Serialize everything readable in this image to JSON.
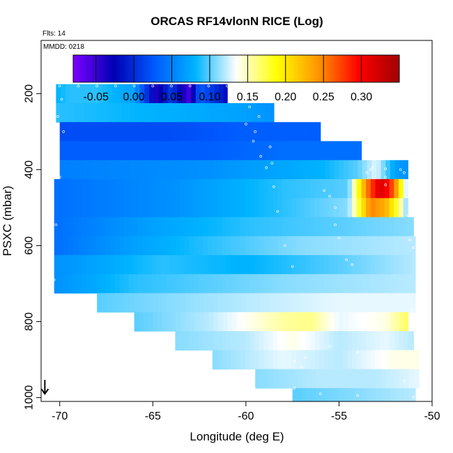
{
  "chart_data": {
    "type": "heatmap",
    "title": "ORCAS RF14vlonN RICE (Log)",
    "flts_label": "Flts: 14",
    "mmdd_label": "MMDD: 0218",
    "xlabel": "Longitude (deg E)",
    "ylabel": "PSXC (mbar)",
    "xlim": [
      -71,
      -50
    ],
    "ylim": [
      1010,
      60
    ],
    "x_ticks": [
      -70,
      -65,
      -60,
      -55,
      -50
    ],
    "x_tick_labels": [
      "-70",
      "-65",
      "-60",
      "-55",
      "-50"
    ],
    "y_ticks": [
      200,
      400,
      600,
      800,
      1000
    ],
    "y_tick_labels": [
      "200",
      "400",
      "600",
      "800",
      "1000"
    ],
    "colorbar": {
      "range": [
        -0.08,
        0.35
      ],
      "ticks": [
        -0.05,
        0.0,
        0.05,
        0.1,
        0.15,
        0.2,
        0.25,
        0.3
      ],
      "tick_labels": [
        "-0.05",
        "0.00",
        "0.05",
        "0.10",
        "0.15",
        "0.20",
        "0.25",
        "0.30"
      ],
      "colors": [
        "#7d00ff",
        "#0000b4",
        "#005aff",
        "#00b4ff",
        "#ffffff",
        "#ffff00",
        "#ff9600",
        "#ff0000",
        "#a00000"
      ]
    },
    "grid": false,
    "wind_arrow": {
      "lon": -70.8,
      "psxc": 990,
      "direction": "down"
    },
    "rows": [
      {
        "p_top": 175,
        "p_bot": 225,
        "lon_min": -70.2,
        "lon_max": -61.0,
        "points": [
          [
            -70.2,
            0.08
          ],
          [
            -69.5,
            0.09
          ],
          [
            -68.0,
            0.09
          ],
          [
            -66.0,
            0.07
          ],
          [
            -65.5,
            0.02
          ],
          [
            -64.8,
            -0.04
          ],
          [
            -64.0,
            0.01
          ],
          [
            -63.0,
            -0.06
          ],
          [
            -62.5,
            0.03
          ],
          [
            -61.0,
            -0.02
          ]
        ]
      },
      {
        "p_top": 225,
        "p_bot": 275,
        "lon_min": -70.2,
        "lon_max": -58.5,
        "points": [
          [
            -70.2,
            0.09
          ],
          [
            -65.0,
            0.08
          ],
          [
            -60.0,
            0.07
          ],
          [
            -58.5,
            0.06
          ]
        ]
      },
      {
        "p_top": 275,
        "p_bot": 325,
        "lon_min": -70.0,
        "lon_max": -56.0,
        "points": [
          [
            -70.0,
            0.02
          ],
          [
            -64.0,
            0.02
          ],
          [
            -60.0,
            0.03
          ],
          [
            -56.0,
            0.03
          ]
        ]
      },
      {
        "p_top": 325,
        "p_bot": 375,
        "lon_min": -70.0,
        "lon_max": -53.8,
        "points": [
          [
            -70.0,
            0.03
          ],
          [
            -62.0,
            0.03
          ],
          [
            -58.0,
            0.04
          ],
          [
            -53.8,
            0.04
          ]
        ]
      },
      {
        "p_top": 375,
        "p_bot": 425,
        "lon_min": -70.0,
        "lon_max": -51.3,
        "points": [
          [
            -70.0,
            0.05
          ],
          [
            -62.0,
            0.06
          ],
          [
            -56.0,
            0.08
          ],
          [
            -54.0,
            0.1
          ],
          [
            -53.0,
            0.13
          ],
          [
            -52.0,
            0.07
          ],
          [
            -51.3,
            0.06
          ]
        ]
      },
      {
        "p_top": 425,
        "p_bot": 475,
        "lon_min": -70.3,
        "lon_max": -51.3,
        "points": [
          [
            -70.3,
            0.04
          ],
          [
            -64.0,
            0.06
          ],
          [
            -58.0,
            0.09
          ],
          [
            -54.5,
            0.1
          ],
          [
            -54.0,
            0.18
          ],
          [
            -53.5,
            0.25
          ],
          [
            -52.8,
            0.32
          ],
          [
            -52.3,
            0.29
          ],
          [
            -51.8,
            0.22
          ],
          [
            -51.3,
            0.1
          ]
        ]
      },
      {
        "p_top": 475,
        "p_bot": 525,
        "lon_min": -70.3,
        "lon_max": -51.3,
        "points": [
          [
            -70.3,
            0.04
          ],
          [
            -64.0,
            0.06
          ],
          [
            -58.0,
            0.09
          ],
          [
            -54.5,
            0.11
          ],
          [
            -54.0,
            0.17
          ],
          [
            -53.3,
            0.25
          ],
          [
            -52.5,
            0.23
          ],
          [
            -51.8,
            0.17
          ],
          [
            -51.3,
            0.1
          ]
        ]
      },
      {
        "p_top": 525,
        "p_bot": 575,
        "lon_min": -70.3,
        "lon_max": -51.0,
        "points": [
          [
            -70.3,
            0.04
          ],
          [
            -65.0,
            0.07
          ],
          [
            -60.0,
            0.09
          ],
          [
            -55.0,
            0.1
          ],
          [
            -51.0,
            0.11
          ]
        ]
      },
      {
        "p_top": 575,
        "p_bot": 625,
        "lon_min": -70.3,
        "lon_max": -50.9,
        "points": [
          [
            -70.3,
            0.04
          ],
          [
            -66.0,
            0.07
          ],
          [
            -62.0,
            0.09
          ],
          [
            -57.0,
            0.11
          ],
          [
            -50.9,
            0.12
          ]
        ]
      },
      {
        "p_top": 625,
        "p_bot": 675,
        "lon_min": -70.3,
        "lon_max": -50.9,
        "points": [
          [
            -70.3,
            0.06
          ],
          [
            -64.5,
            0.09
          ],
          [
            -60.0,
            0.08
          ],
          [
            -55.0,
            0.1
          ],
          [
            -50.9,
            0.12
          ]
        ]
      },
      {
        "p_top": 675,
        "p_bot": 725,
        "lon_min": -70.3,
        "lon_max": -50.9,
        "points": [
          [
            -70.3,
            0.06
          ],
          [
            -66.0,
            0.09
          ],
          [
            -62.0,
            0.1
          ],
          [
            -58.0,
            0.11
          ],
          [
            -50.9,
            0.12
          ]
        ]
      },
      {
        "p_top": 725,
        "p_bot": 775,
        "lon_min": -68.0,
        "lon_max": -50.9,
        "points": [
          [
            -68.0,
            0.1
          ],
          [
            -64.0,
            0.11
          ],
          [
            -60.0,
            0.12
          ],
          [
            -55.0,
            0.13
          ],
          [
            -50.9,
            0.13
          ]
        ]
      },
      {
        "p_top": 775,
        "p_bot": 825,
        "lon_min": -66.0,
        "lon_max": -51.3,
        "points": [
          [
            -66.0,
            0.1
          ],
          [
            -62.0,
            0.12
          ],
          [
            -58.0,
            0.155
          ],
          [
            -56.5,
            0.16
          ],
          [
            -55.0,
            0.13
          ],
          [
            -52.5,
            0.14
          ],
          [
            -51.3,
            0.17
          ]
        ]
      },
      {
        "p_top": 825,
        "p_bot": 875,
        "lon_min": -63.8,
        "lon_max": -51.0,
        "points": [
          [
            -63.8,
            0.11
          ],
          [
            -60.0,
            0.12
          ],
          [
            -57.5,
            0.14
          ],
          [
            -55.0,
            0.12
          ],
          [
            -52.5,
            0.13
          ],
          [
            -51.0,
            0.12
          ]
        ]
      },
      {
        "p_top": 875,
        "p_bot": 925,
        "lon_min": -61.8,
        "lon_max": -50.7,
        "points": [
          [
            -61.8,
            0.11
          ],
          [
            -58.0,
            0.13
          ],
          [
            -55.0,
            0.12
          ],
          [
            -52.0,
            0.14
          ],
          [
            -50.7,
            0.14
          ]
        ]
      },
      {
        "p_top": 925,
        "p_bot": 975,
        "lon_min": -59.5,
        "lon_max": -50.7,
        "points": [
          [
            -59.5,
            0.11
          ],
          [
            -56.0,
            0.12
          ],
          [
            -53.0,
            0.12
          ],
          [
            -50.7,
            0.13
          ]
        ]
      },
      {
        "p_top": 975,
        "p_bot": 1010,
        "lon_min": -57.5,
        "lon_max": -50.9,
        "points": [
          [
            -57.5,
            0.1
          ],
          [
            -54.0,
            0.11
          ],
          [
            -50.9,
            0.12
          ]
        ]
      }
    ],
    "flight_track": [
      [
        -70.0,
        180
      ],
      [
        -69.0,
        180
      ],
      [
        -68.0,
        180
      ],
      [
        -67.0,
        180
      ],
      [
        -66.0,
        180
      ],
      [
        -65.0,
        180
      ],
      [
        -64.0,
        180
      ],
      [
        -63.0,
        180
      ],
      [
        -62.0,
        180
      ],
      [
        -61.0,
        180
      ],
      [
        -69.9,
        215
      ],
      [
        -70.1,
        260
      ],
      [
        -69.8,
        300
      ],
      [
        -70.2,
        345
      ],
      [
        -70.0,
        420
      ],
      [
        -70.2,
        545
      ],
      [
        -70.3,
        690
      ],
      [
        -59.8,
        235
      ],
      [
        -60.0,
        280
      ],
      [
        -59.6,
        325
      ],
      [
        -59.2,
        365
      ],
      [
        -58.9,
        395
      ],
      [
        -58.5,
        445
      ],
      [
        -58.3,
        510
      ],
      [
        -57.9,
        600
      ],
      [
        -57.5,
        655
      ],
      [
        -59.3,
        260
      ],
      [
        -59.5,
        300
      ],
      [
        -58.7,
        340
      ],
      [
        -58.6,
        383
      ],
      [
        -55.2,
        545
      ],
      [
        -55.0,
        580
      ],
      [
        -54.6,
        637
      ],
      [
        -54.3,
        650
      ],
      [
        -55.2,
        500
      ],
      [
        -55.5,
        470
      ],
      [
        -55.8,
        455
      ],
      [
        -53.5,
        408
      ],
      [
        -53.3,
        400
      ],
      [
        -53.2,
        395
      ],
      [
        -52.5,
        398
      ],
      [
        -52.5,
        420
      ],
      [
        -52.5,
        440
      ],
      [
        -51.7,
        400
      ],
      [
        -51.5,
        408
      ],
      [
        -51.3,
        520
      ],
      [
        -51.2,
        585
      ],
      [
        -51.0,
        605
      ],
      [
        -51.1,
        770
      ],
      [
        -57.4,
        905
      ],
      [
        -57.0,
        920
      ],
      [
        -56.8,
        895
      ],
      [
        -55.5,
        865
      ],
      [
        -54.0,
        880
      ],
      [
        -51.5,
        955
      ],
      [
        -57.4,
        975
      ],
      [
        -56.0,
        990
      ],
      [
        -54.0,
        995
      ],
      [
        -51.0,
        998
      ]
    ]
  }
}
